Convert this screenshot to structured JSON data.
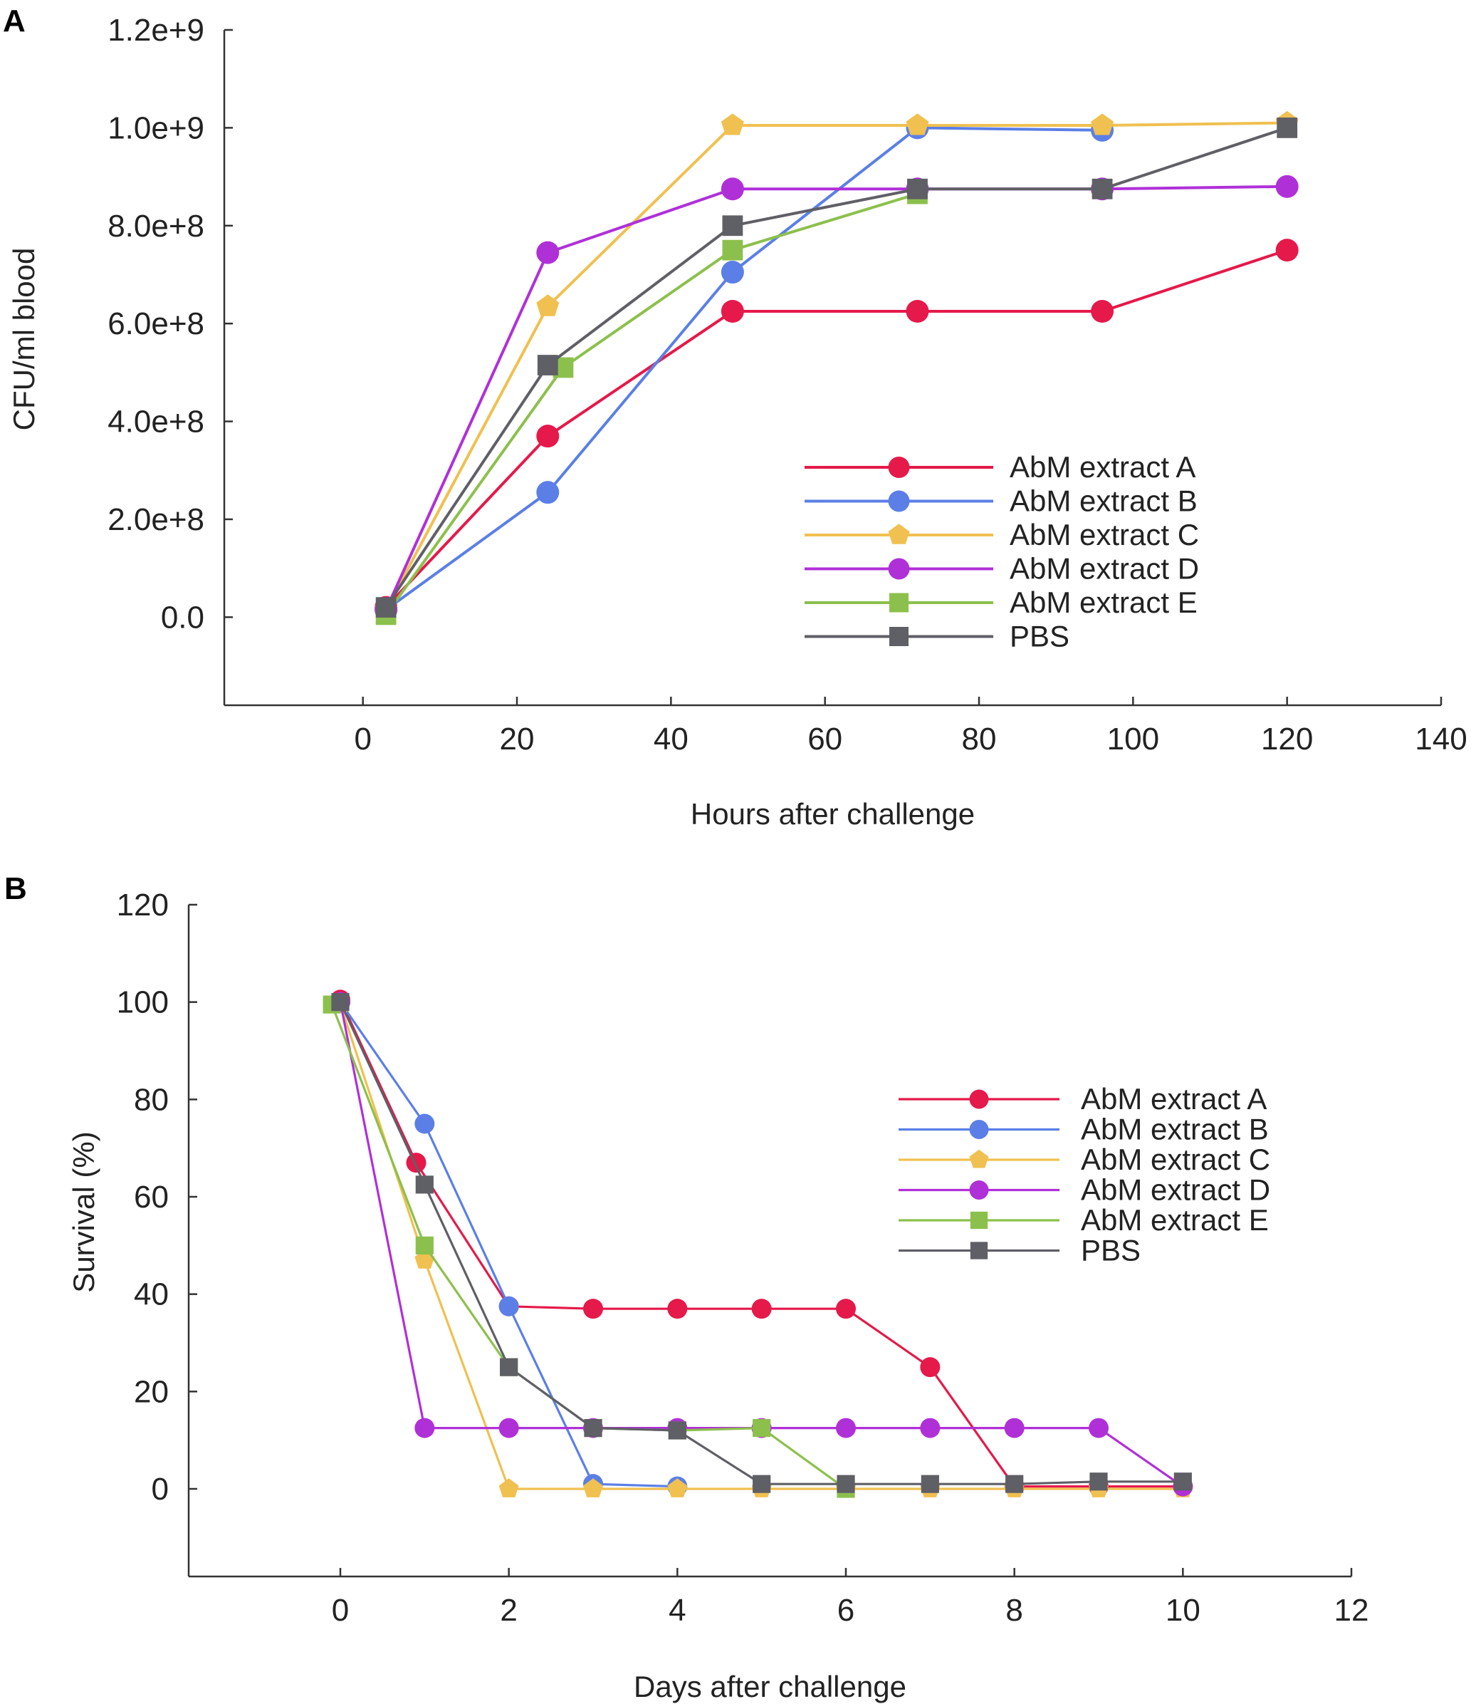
{
  "panels": [
    {
      "letter": "A",
      "chart_data": {
        "type": "line",
        "xlabel": "Hours after challenge",
        "ylabel": "CFU/ml blood",
        "xlim": [
          -18,
          140
        ],
        "ylim": [
          -180000000,
          1200000000
        ],
        "xticks": [
          0,
          20,
          40,
          60,
          80,
          100,
          120,
          140
        ],
        "xtick_labels": [
          "0",
          "20",
          "40",
          "60",
          "80",
          "100",
          "120",
          "140"
        ],
        "yticks": [
          0,
          200000000,
          400000000,
          600000000,
          800000000,
          1000000000,
          1200000000
        ],
        "ytick_labels": [
          "0.0",
          "2.0e+8",
          "4.0e+8",
          "6.0e+8",
          "8.0e+8",
          "1.0e+9",
          "1.2e+9"
        ],
        "grid": false,
        "legend_position": "center-right",
        "series": [
          {
            "name": "AbM extract A",
            "color": "#e5194a",
            "marker": "circle",
            "x": [
              3,
              24,
              48,
              72,
              96,
              120
            ],
            "y": [
              20000000,
              370000000,
              625000000,
              625000000,
              625000000,
              750000000
            ]
          },
          {
            "name": "AbM extract B",
            "color": "#5b7fe6",
            "marker": "circle",
            "x": [
              3,
              24,
              48,
              72,
              96,
              120
            ],
            "y": [
              15000000,
              255000000,
              705000000,
              1000000000,
              995000000,
              null
            ]
          },
          {
            "name": "AbM extract C",
            "color": "#f0c050",
            "marker": "pentagon",
            "x": [
              3,
              24,
              48,
              72,
              96,
              120
            ],
            "y": [
              15000000,
              635000000,
              1005000000,
              1005000000,
              1005000000,
              1010000000
            ]
          },
          {
            "name": "AbM extract D",
            "color": "#b030d8",
            "marker": "circle",
            "x": [
              3,
              24,
              48,
              72,
              96,
              120
            ],
            "y": [
              15000000,
              745000000,
              875000000,
              875000000,
              875000000,
              880000000
            ]
          },
          {
            "name": "AbM extract E",
            "color": "#8cc04c",
            "marker": "square",
            "x": [
              3,
              26,
              48,
              72
            ],
            "y": [
              5000000,
              510000000,
              750000000,
              865000000
            ]
          },
          {
            "name": "PBS",
            "color": "#5f5f66",
            "marker": "square",
            "x": [
              3,
              24,
              48,
              72,
              96,
              120
            ],
            "y": [
              20000000,
              515000000,
              800000000,
              875000000,
              875000000,
              1000000000
            ]
          }
        ]
      }
    },
    {
      "letter": "B",
      "chart_data": {
        "type": "line",
        "xlabel": "Days after challenge",
        "ylabel": "Survival (%)",
        "xlim": [
          -1.8,
          12
        ],
        "ylim": [
          -18,
          120
        ],
        "xticks": [
          0,
          2,
          4,
          6,
          8,
          10,
          12
        ],
        "xtick_labels": [
          "0",
          "2",
          "4",
          "6",
          "8",
          "10",
          "12"
        ],
        "yticks": [
          0,
          20,
          40,
          60,
          80,
          100,
          120
        ],
        "ytick_labels": [
          "0",
          "20",
          "40",
          "60",
          "80",
          "100",
          "120"
        ],
        "grid": false,
        "legend_position": "center-right",
        "series": [
          {
            "name": "AbM extract A",
            "color": "#e5194a",
            "marker": "circle",
            "x": [
              0,
              0.9,
              2,
              3,
              4,
              5,
              6,
              7,
              8,
              9,
              10
            ],
            "y": [
              100.5,
              67,
              37.5,
              37,
              37,
              37,
              37,
              25,
              0.5,
              0.5,
              0.5
            ]
          },
          {
            "name": "AbM extract B",
            "color": "#5b7fe6",
            "marker": "circle",
            "x": [
              0,
              1,
              2,
              3,
              4
            ],
            "y": [
              100,
              75,
              37.5,
              1,
              0.5
            ]
          },
          {
            "name": "AbM extract C",
            "color": "#f0c050",
            "marker": "pentagon",
            "x": [
              0,
              1,
              2,
              3,
              4,
              5,
              6,
              7,
              8,
              9,
              10
            ],
            "y": [
              99.5,
              47,
              0,
              0,
              0,
              0,
              0,
              0,
              0,
              0,
              0
            ]
          },
          {
            "name": "AbM extract D",
            "color": "#b030d8",
            "marker": "circle",
            "x": [
              0,
              1,
              2,
              3,
              4,
              5,
              6,
              7,
              8,
              9,
              10
            ],
            "y": [
              100,
              12.5,
              12.5,
              12.5,
              12.5,
              12.5,
              12.5,
              12.5,
              12.5,
              12.5,
              0.5
            ]
          },
          {
            "name": "AbM extract E",
            "color": "#8cc04c",
            "marker": "square",
            "x": [
              -0.1,
              1,
              2,
              3,
              4,
              5,
              6
            ],
            "y": [
              99.5,
              50,
              25,
              12.5,
              12,
              12.5,
              0
            ]
          },
          {
            "name": "PBS",
            "color": "#5f5f66",
            "marker": "square",
            "x": [
              0,
              1,
              2,
              3,
              4,
              5,
              6,
              7,
              8,
              9,
              10
            ],
            "y": [
              100,
              62.5,
              25,
              12.5,
              12,
              1,
              1,
              1,
              1,
              1.5,
              1.5
            ]
          }
        ]
      }
    }
  ]
}
